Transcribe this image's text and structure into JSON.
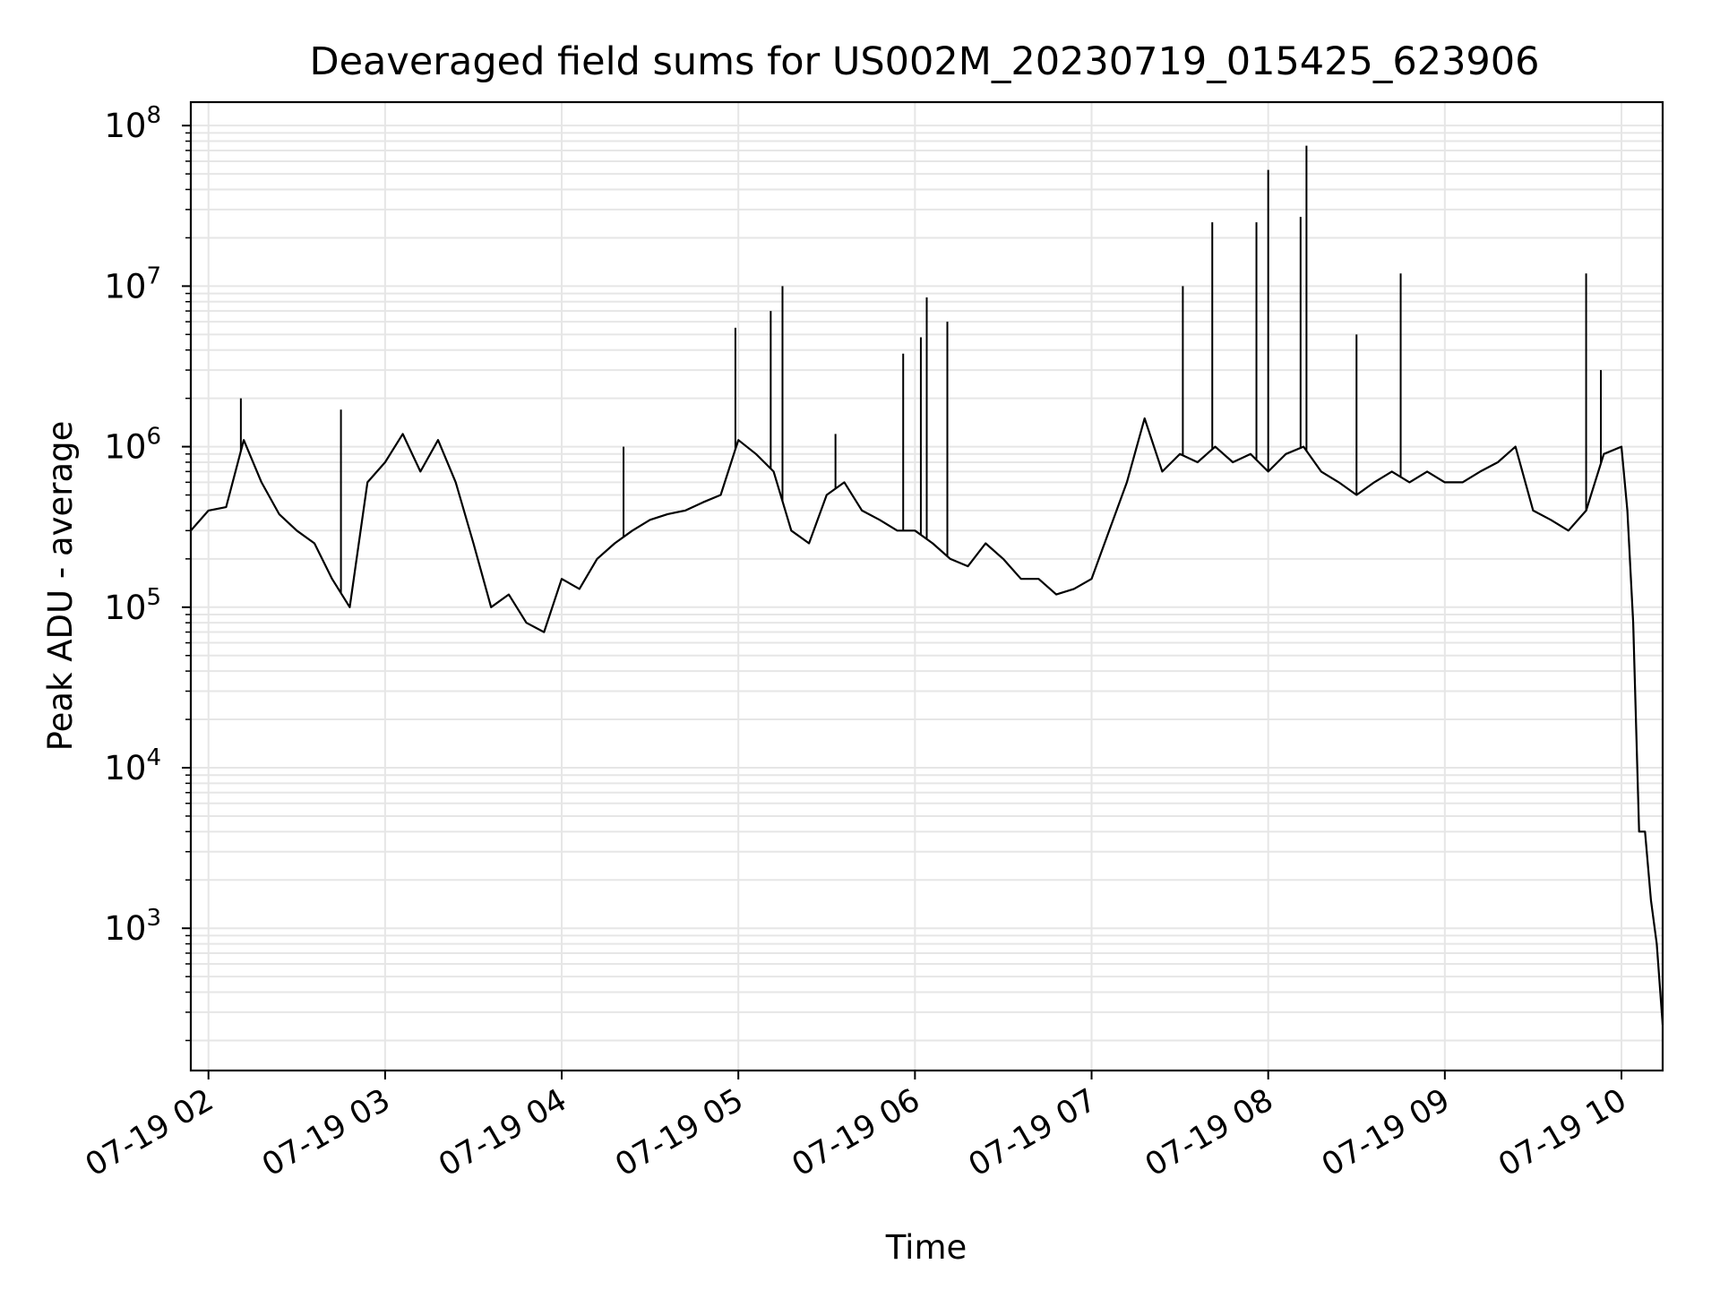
{
  "chart_data": {
    "type": "line",
    "title": "Deaveraged field sums for US002M_20230719_015425_623906",
    "xlabel": "Time",
    "ylabel": "Peak ADU - average",
    "y_scale": "log",
    "ylim": [
      130,
      140000000
    ],
    "xlim": [
      "2023-07-19 01:54",
      "2023-07-19 10:14"
    ],
    "grid": true,
    "line_color": "#000000",
    "grid_color": "#e6e6e6",
    "x_ticks": [
      {
        "t": "2023-07-19 02:00",
        "label": "07-19 02"
      },
      {
        "t": "2023-07-19 03:00",
        "label": "07-19 03"
      },
      {
        "t": "2023-07-19 04:00",
        "label": "07-19 04"
      },
      {
        "t": "2023-07-19 05:00",
        "label": "07-19 05"
      },
      {
        "t": "2023-07-19 06:00",
        "label": "07-19 06"
      },
      {
        "t": "2023-07-19 07:00",
        "label": "07-19 07"
      },
      {
        "t": "2023-07-19 08:00",
        "label": "07-19 08"
      },
      {
        "t": "2023-07-19 09:00",
        "label": "07-19 09"
      },
      {
        "t": "2023-07-19 10:00",
        "label": "07-19 10"
      }
    ],
    "y_ticks": [
      {
        "value": 1000,
        "base": "10",
        "exp": "3"
      },
      {
        "value": 10000,
        "base": "10",
        "exp": "4"
      },
      {
        "value": 100000,
        "base": "10",
        "exp": "5"
      },
      {
        "value": 1000000,
        "base": "10",
        "exp": "6"
      },
      {
        "value": 10000000,
        "base": "10",
        "exp": "7"
      },
      {
        "value": 100000000,
        "base": "10",
        "exp": "8"
      }
    ],
    "series": [
      {
        "x": [
          "2023-07-19 01:54",
          "2023-07-19 02:00",
          "2023-07-19 02:06",
          "2023-07-19 02:12",
          "2023-07-19 02:18",
          "2023-07-19 02:24",
          "2023-07-19 02:30",
          "2023-07-19 02:36",
          "2023-07-19 02:42",
          "2023-07-19 02:48",
          "2023-07-19 02:54",
          "2023-07-19 03:00",
          "2023-07-19 03:06",
          "2023-07-19 03:12",
          "2023-07-19 03:18",
          "2023-07-19 03:24",
          "2023-07-19 03:30",
          "2023-07-19 03:36",
          "2023-07-19 03:42",
          "2023-07-19 03:48",
          "2023-07-19 03:54",
          "2023-07-19 04:00",
          "2023-07-19 04:06",
          "2023-07-19 04:12",
          "2023-07-19 04:18",
          "2023-07-19 04:24",
          "2023-07-19 04:30",
          "2023-07-19 04:36",
          "2023-07-19 04:42",
          "2023-07-19 04:48",
          "2023-07-19 04:54",
          "2023-07-19 05:00",
          "2023-07-19 05:06",
          "2023-07-19 05:12",
          "2023-07-19 05:18",
          "2023-07-19 05:24",
          "2023-07-19 05:30",
          "2023-07-19 05:36",
          "2023-07-19 05:42",
          "2023-07-19 05:48",
          "2023-07-19 05:54",
          "2023-07-19 06:00",
          "2023-07-19 06:06",
          "2023-07-19 06:12",
          "2023-07-19 06:18",
          "2023-07-19 06:24",
          "2023-07-19 06:30",
          "2023-07-19 06:36",
          "2023-07-19 06:42",
          "2023-07-19 06:48",
          "2023-07-19 06:54",
          "2023-07-19 07:00",
          "2023-07-19 07:06",
          "2023-07-19 07:12",
          "2023-07-19 07:18",
          "2023-07-19 07:24",
          "2023-07-19 07:30",
          "2023-07-19 07:36",
          "2023-07-19 07:42",
          "2023-07-19 07:48",
          "2023-07-19 07:54",
          "2023-07-19 08:00",
          "2023-07-19 08:06",
          "2023-07-19 08:12",
          "2023-07-19 08:18",
          "2023-07-19 08:24",
          "2023-07-19 08:30",
          "2023-07-19 08:36",
          "2023-07-19 08:42",
          "2023-07-19 08:48",
          "2023-07-19 08:54",
          "2023-07-19 09:00",
          "2023-07-19 09:06",
          "2023-07-19 09:12",
          "2023-07-19 09:18",
          "2023-07-19 09:24",
          "2023-07-19 09:30",
          "2023-07-19 09:36",
          "2023-07-19 09:42",
          "2023-07-19 09:48",
          "2023-07-19 09:54",
          "2023-07-19 10:00",
          "2023-07-19 10:02",
          "2023-07-19 10:04",
          "2023-07-19 10:06",
          "2023-07-19 10:08",
          "2023-07-19 10:10",
          "2023-07-19 10:12",
          "2023-07-19 10:14"
        ],
        "y": [
          300000,
          400000,
          420000,
          1100000,
          600000,
          380000,
          300000,
          250000,
          150000,
          100000,
          600000,
          800000,
          1200000,
          700000,
          1100000,
          600000,
          250000,
          100000,
          120000,
          80000,
          70000,
          150000,
          130000,
          200000,
          250000,
          300000,
          350000,
          380000,
          400000,
          450000,
          500000,
          1100000,
          900000,
          700000,
          300000,
          250000,
          500000,
          600000,
          400000,
          350000,
          300000,
          300000,
          250000,
          200000,
          180000,
          250000,
          200000,
          150000,
          150000,
          120000,
          130000,
          150000,
          300000,
          600000,
          1500000,
          700000,
          900000,
          800000,
          1000000,
          800000,
          900000,
          700000,
          900000,
          1000000,
          700000,
          600000,
          500000,
          600000,
          700000,
          600000,
          700000,
          600000,
          600000,
          700000,
          800000,
          1000000,
          400000,
          350000,
          300000,
          400000,
          900000,
          1000000,
          400000,
          80000,
          4000,
          4000,
          1500,
          800,
          250
        ]
      }
    ],
    "spikes": [
      {
        "x": "2023-07-19 02:11",
        "y": 2000000
      },
      {
        "x": "2023-07-19 02:45",
        "y": 1700000
      },
      {
        "x": "2023-07-19 04:21",
        "y": 1000000
      },
      {
        "x": "2023-07-19 04:59",
        "y": 5500000
      },
      {
        "x": "2023-07-19 05:11",
        "y": 7000000
      },
      {
        "x": "2023-07-19 05:15",
        "y": 10000000
      },
      {
        "x": "2023-07-19 05:33",
        "y": 1200000
      },
      {
        "x": "2023-07-19 05:56",
        "y": 3800000
      },
      {
        "x": "2023-07-19 06:02",
        "y": 4800000
      },
      {
        "x": "2023-07-19 06:04",
        "y": 8500000
      },
      {
        "x": "2023-07-19 06:11",
        "y": 6000000
      },
      {
        "x": "2023-07-19 07:31",
        "y": 10000000
      },
      {
        "x": "2023-07-19 07:41",
        "y": 25000000
      },
      {
        "x": "2023-07-19 07:56",
        "y": 25000000
      },
      {
        "x": "2023-07-19 08:00",
        "y": 53000000
      },
      {
        "x": "2023-07-19 08:13",
        "y": 75000000
      },
      {
        "x": "2023-07-19 08:11",
        "y": 27000000
      },
      {
        "x": "2023-07-19 08:30",
        "y": 5000000
      },
      {
        "x": "2023-07-19 08:45",
        "y": 12000000
      },
      {
        "x": "2023-07-19 09:48",
        "y": 12000000
      },
      {
        "x": "2023-07-19 09:53",
        "y": 3000000
      }
    ]
  }
}
